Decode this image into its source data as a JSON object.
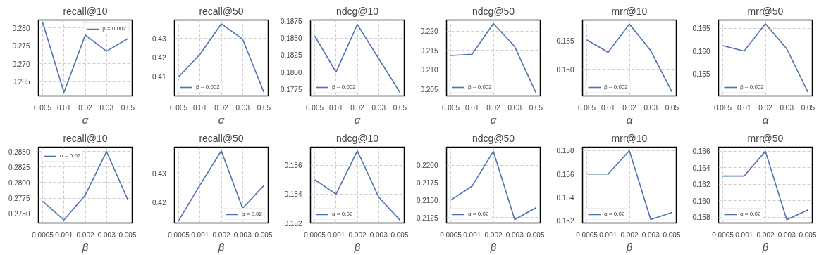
{
  "chart_data": [
    {
      "type": "line",
      "title": "recall@10",
      "xlabel": "α",
      "categories": [
        "0.005",
        "0.01",
        "0.02",
        "0.03",
        "0.05"
      ],
      "series": [
        {
          "name": "β = 0.002",
          "color": "#4c72b0",
          "values": [
            0.2815,
            0.262,
            0.278,
            0.2735,
            0.277
          ]
        }
      ],
      "ylim": [
        0.261,
        0.2822
      ],
      "yticks": [
        0.265,
        {
          "value": 0.27,
          "label": "0.270"
        },
        0.275,
        {
          "value": 0.28,
          "label": "0.280"
        }
      ],
      "grid": true,
      "legend": "top right"
    },
    {
      "type": "line",
      "title": "recall@50",
      "xlabel": "α",
      "categories": [
        "0.005",
        "0.01",
        "0.02",
        "0.03",
        "0.05"
      ],
      "series": [
        {
          "name": "β = 0.002",
          "color": "#4c72b0",
          "values": [
            0.41,
            0.4218,
            0.4377,
            0.4297,
            0.4019
          ]
        }
      ],
      "ylim": [
        0.4,
        0.4397
      ],
      "yticks": [
        0.41,
        0.42,
        0.43
      ],
      "grid": true,
      "legend": "bottom left"
    },
    {
      "type": "line",
      "title": "ndcg@10",
      "xlabel": "α",
      "categories": [
        "0.005",
        "0.01",
        "0.02",
        "0.03",
        "0.05"
      ],
      "series": [
        {
          "name": "β = 0.002",
          "color": "#4c72b0",
          "values": [
            0.1853,
            0.18,
            0.187,
            0.182,
            0.177
          ]
        }
      ],
      "ylim": [
        0.1765,
        0.18765
      ],
      "yticks": [
        {
          "value": 0.1775,
          "label": "0.1775"
        },
        {
          "value": 0.18,
          "label": "0.1800"
        },
        {
          "value": 0.1825,
          "label": "0.1825"
        },
        {
          "value": 0.185,
          "label": "0.1850"
        },
        {
          "value": 0.1875,
          "label": "0.1875"
        }
      ],
      "grid": true,
      "legend": "bottom left"
    },
    {
      "type": "line",
      "title": "ndcg@50",
      "xlabel": "α",
      "categories": [
        "0.005",
        "0.01",
        "0.02",
        "0.03",
        "0.05"
      ],
      "series": [
        {
          "name": "β = 0.002",
          "color": "#4c72b0",
          "values": [
            0.2137,
            0.214,
            0.222,
            0.216,
            0.204
          ]
        }
      ],
      "ylim": [
        0.2032,
        0.2229
      ],
      "yticks": [
        0.205,
        {
          "value": 0.21,
          "label": "0.210"
        },
        0.215,
        {
          "value": 0.22,
          "label": "0.220"
        }
      ],
      "grid": true,
      "legend": "bottom left"
    },
    {
      "type": "line",
      "title": "mrr@10",
      "xlabel": "α",
      "categories": [
        "0.005",
        "0.01",
        "0.02",
        "0.03",
        "0.05"
      ],
      "series": [
        {
          "name": "β = 0.002",
          "color": "#4c72b0",
          "values": [
            0.1552,
            0.153,
            0.158,
            0.1533,
            0.146
          ]
        }
      ],
      "ylim": [
        0.1453,
        0.1587
      ],
      "yticks": [
        {
          "value": 0.15,
          "label": "0.150"
        },
        0.155
      ],
      "grid": true,
      "legend": "bottom left"
    },
    {
      "type": "line",
      "title": "mrr@50",
      "xlabel": "α",
      "categories": [
        "0.005",
        "0.01",
        "0.02",
        "0.03",
        "0.05"
      ],
      "series": [
        {
          "name": "β = 0.002",
          "color": "#4c72b0",
          "values": [
            0.1612,
            0.16,
            0.166,
            0.1605,
            0.151
          ]
        }
      ],
      "ylim": [
        0.1502,
        0.1668
      ],
      "yticks": [
        0.155,
        {
          "value": 0.16,
          "label": "0.160"
        },
        0.165
      ],
      "grid": true,
      "legend": "bottom left"
    },
    {
      "type": "line",
      "title": "recall@10",
      "xlabel": "β",
      "categories": [
        "0.0005",
        "0.001",
        "0.002",
        "0.003",
        "0.005"
      ],
      "series": [
        {
          "name": "α = 0.02",
          "color": "#4c72b0",
          "values": [
            0.277,
            0.274,
            0.278,
            0.285,
            0.2772
          ]
        }
      ],
      "ylim": [
        0.2735,
        0.2857
      ],
      "yticks": [
        {
          "value": 0.275,
          "label": "0.2750"
        },
        0.2775,
        {
          "value": 0.28,
          "label": "0.2800"
        },
        0.2825,
        {
          "value": 0.285,
          "label": "0.2850"
        }
      ],
      "grid": true,
      "legend": "top left"
    },
    {
      "type": "line",
      "title": "recall@50",
      "xlabel": "β",
      "categories": [
        "0.0005",
        "0.001",
        "0.002",
        "0.003",
        "0.005"
      ],
      "series": [
        {
          "name": "α = 0.02",
          "color": "#4c72b0",
          "values": [
            0.4135,
            0.426,
            0.438,
            0.4178,
            0.4258
          ]
        }
      ],
      "ylim": [
        0.4126,
        0.4393
      ],
      "yticks": [
        0.42,
        0.43
      ],
      "grid": true,
      "legend": "bottom right"
    },
    {
      "type": "line",
      "title": "ndcg@10",
      "xlabel": "β",
      "categories": [
        "0.0005",
        "0.001",
        "0.002",
        "0.003",
        "0.005"
      ],
      "series": [
        {
          "name": "α = 0.02",
          "color": "#4c72b0",
          "values": [
            0.185,
            0.184,
            0.187,
            0.1838,
            0.1822
          ]
        }
      ],
      "ylim": [
        0.182,
        0.18725
      ],
      "yticks": [
        0.182,
        0.184,
        0.186
      ],
      "grid": true,
      "legend": "bottom left"
    },
    {
      "type": "line",
      "title": "ndcg@50",
      "xlabel": "β",
      "categories": [
        "0.0005",
        "0.001",
        "0.002",
        "0.003",
        "0.005"
      ],
      "series": [
        {
          "name": "α = 0.02",
          "color": "#4c72b0",
          "values": [
            0.215,
            0.217,
            0.222,
            0.2122,
            0.2139
          ]
        }
      ],
      "ylim": [
        0.2117,
        0.2226
      ],
      "yticks": [
        0.2125,
        {
          "value": 0.215,
          "label": "0.2150"
        },
        0.2175,
        {
          "value": 0.22,
          "label": "0.2200"
        }
      ],
      "grid": true,
      "legend": "bottom left"
    },
    {
      "type": "line",
      "title": "mrr@10",
      "xlabel": "β",
      "categories": [
        "0.0005",
        "0.001",
        "0.002",
        "0.003",
        "0.005"
      ],
      "series": [
        {
          "name": "α = 0.02",
          "color": "#4c72b0",
          "values": [
            0.156,
            0.156,
            0.158,
            0.1521,
            0.1527
          ]
        }
      ],
      "ylim": [
        0.1518,
        0.1583
      ],
      "yticks": [
        0.152,
        0.154,
        0.156,
        0.158
      ],
      "grid": true,
      "legend": "bottom left"
    },
    {
      "type": "line",
      "title": "mrr@50",
      "xlabel": "β",
      "categories": [
        "0.0005",
        "0.001",
        "0.002",
        "0.003",
        "0.005"
      ],
      "series": [
        {
          "name": "α = 0.02",
          "color": "#4c72b0",
          "values": [
            0.163,
            0.163,
            0.166,
            0.1577,
            0.1589
          ]
        }
      ],
      "ylim": [
        0.1573,
        0.1665
      ],
      "yticks": [
        0.158,
        {
          "value": 0.16,
          "label": "0.160"
        },
        0.162,
        0.164,
        0.166
      ],
      "grid": true,
      "legend": "bottom left"
    }
  ]
}
